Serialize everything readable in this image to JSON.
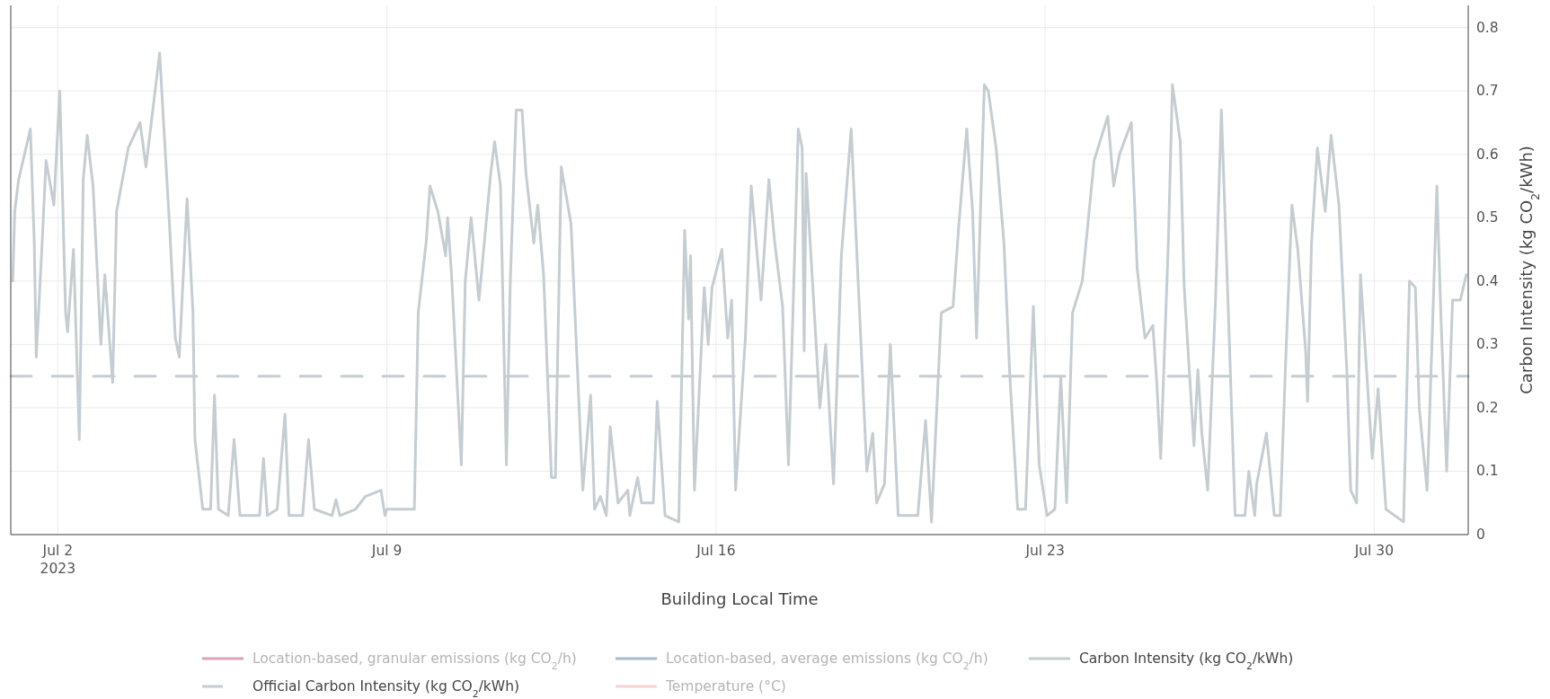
{
  "chart_data": {
    "type": "line",
    "xlabel": "Building Local Time",
    "ylabel": "Carbon Intensity (kg CO$_{2}$/kWh)",
    "xlim": [
      "2023-07-01",
      "2023-08-01"
    ],
    "ylim": [
      0,
      0.835
    ],
    "yticks": [
      0,
      0.1,
      0.2,
      0.3,
      0.4,
      0.5,
      0.6,
      0.7,
      0.8
    ],
    "xticks": [
      {
        "value": "2023-07-02",
        "label": "Jul 2\n2023"
      },
      {
        "value": "2023-07-09",
        "label": "Jul 9"
      },
      {
        "value": "2023-07-16",
        "label": "Jul 16"
      },
      {
        "value": "2023-07-23",
        "label": "Jul 23"
      },
      {
        "value": "2023-07-30",
        "label": "Jul 30"
      }
    ],
    "grid": true,
    "legend": "bottom",
    "line_style": "solid",
    "marker": "none",
    "series": [
      {
        "name": "Location-based, granular emissions (kg CO$_{2}$/h)",
        "color": "#d9a3b8"
      },
      {
        "name": "Location-based, average emissions (kg CO$_{2}$/h)",
        "color": "#a9b8cc"
      },
      {
        "name": "Carbon Intensity (kg CO$_{2}$/kWh)",
        "color": "#c5cdd0",
        "x": [
          "2023-07-01T01:00",
          "2023-07-01T02:00",
          "2023-07-01T04:00",
          "2023-07-01T10:00",
          "2023-07-01T12:00",
          "2023-07-01T13:00",
          "2023-07-01T16:00",
          "2023-07-01T18:00",
          "2023-07-01T22:00",
          "2023-07-02T01:00",
          "2023-07-02T04:00",
          "2023-07-02T05:00",
          "2023-07-02T08:00",
          "2023-07-02T11:00",
          "2023-07-02T13:00",
          "2023-07-02T15:00",
          "2023-07-02T18:00",
          "2023-07-02T22:00",
          "2023-07-03T00:00",
          "2023-07-03T04:00",
          "2023-07-03T06:00",
          "2023-07-03T12:00",
          "2023-07-03T18:00",
          "2023-07-03T21:00",
          "2023-07-04T04:00",
          "2023-07-04T06:00",
          "2023-07-04T09:00",
          "2023-07-04T12:00",
          "2023-07-04T14:00",
          "2023-07-04T18:00",
          "2023-07-04T21:00",
          "2023-07-04T22:00",
          "2023-07-05T02:00",
          "2023-07-05T06:00",
          "2023-07-05T08:00",
          "2023-07-05T10:00",
          "2023-07-05T15:00",
          "2023-07-05T18:00",
          "2023-07-05T21:00",
          "2023-07-06T07:00",
          "2023-07-06T09:00",
          "2023-07-06T11:00",
          "2023-07-06T16:00",
          "2023-07-06T20:00",
          "2023-07-06T22:00",
          "2023-07-07T05:00",
          "2023-07-07T08:00",
          "2023-07-07T11:00",
          "2023-07-07T20:00",
          "2023-07-07T22:00",
          "2023-07-08T00:00",
          "2023-07-08T08:00",
          "2023-07-08T13:00",
          "2023-07-08T21:00",
          "2023-07-08T23:00",
          "2023-07-09T00:00",
          "2023-07-09T14:00",
          "2023-07-09T16:00",
          "2023-07-09T20:00",
          "2023-07-09T22:00",
          "2023-07-10T02:00",
          "2023-07-10T06:00",
          "2023-07-10T07:00",
          "2023-07-10T09:00",
          "2023-07-10T14:00",
          "2023-07-10T16:00",
          "2023-07-10T19:00",
          "2023-07-10T23:00",
          "2023-07-11T05:00",
          "2023-07-11T07:00",
          "2023-07-11T10:00",
          "2023-07-11T13:00",
          "2023-07-11T15:00",
          "2023-07-11T18:00",
          "2023-07-11T21:00",
          "2023-07-11T23:00",
          "2023-07-12T03:00",
          "2023-07-12T05:00",
          "2023-07-12T08:00",
          "2023-07-12T12:00",
          "2023-07-12T14:00",
          "2023-07-12T17:00",
          "2023-07-12T22:00",
          "2023-07-13T02:00",
          "2023-07-13T04:00",
          "2023-07-13T08:00",
          "2023-07-13T10:00",
          "2023-07-13T13:00",
          "2023-07-13T16:00",
          "2023-07-13T18:00",
          "2023-07-13T22:00",
          "2023-07-14T03:00",
          "2023-07-14T04:00",
          "2023-07-14T08:00",
          "2023-07-14T10:00",
          "2023-07-14T16:00",
          "2023-07-14T18:00",
          "2023-07-14T22:00",
          "2023-07-15T05:00",
          "2023-07-15T08:00",
          "2023-07-15T10:00",
          "2023-07-15T11:00",
          "2023-07-15T13:00",
          "2023-07-15T18:00",
          "2023-07-15T20:00",
          "2023-07-15T22:00",
          "2023-07-16T03:00",
          "2023-07-16T06:00",
          "2023-07-16T08:00",
          "2023-07-16T10:00",
          "2023-07-16T15:00",
          "2023-07-16T18:00",
          "2023-07-16T23:00",
          "2023-07-17T03:00",
          "2023-07-17T06:00",
          "2023-07-17T10:00",
          "2023-07-17T13:00",
          "2023-07-17T18:00",
          "2023-07-17T20:00",
          "2023-07-17T21:00",
          "2023-07-17T22:00",
          "2023-07-18T02:00",
          "2023-07-18T05:00",
          "2023-07-18T08:00",
          "2023-07-18T12:00",
          "2023-07-18T16:00",
          "2023-07-18T21:00",
          "2023-07-19T01:00",
          "2023-07-19T05:00",
          "2023-07-19T08:00",
          "2023-07-19T10:00",
          "2023-07-19T14:00",
          "2023-07-19T17:00",
          "2023-07-19T21:00",
          "2023-07-20T07:00",
          "2023-07-20T11:00",
          "2023-07-20T14:00",
          "2023-07-20T19:00",
          "2023-07-21T01:00",
          "2023-07-21T04:00",
          "2023-07-21T08:00",
          "2023-07-21T11:00",
          "2023-07-21T13:00",
          "2023-07-21T17:00",
          "2023-07-21T19:00",
          "2023-07-21T23:00",
          "2023-07-22T03:00",
          "2023-07-22T06:00",
          "2023-07-22T10:00",
          "2023-07-22T14:00",
          "2023-07-22T18:00",
          "2023-07-22T21:00",
          "2023-07-23T01:00",
          "2023-07-23T05:00",
          "2023-07-23T08:00",
          "2023-07-23T11:00",
          "2023-07-23T14:00",
          "2023-07-23T19:00",
          "2023-07-24T01:00",
          "2023-07-24T08:00",
          "2023-07-24T11:00",
          "2023-07-24T14:00",
          "2023-07-24T20:00",
          "2023-07-24T23:00",
          "2023-07-25T03:00",
          "2023-07-25T07:00",
          "2023-07-25T09:00",
          "2023-07-25T11:00",
          "2023-07-25T15:00",
          "2023-07-25T17:00",
          "2023-07-25T21:00",
          "2023-07-25T23:00",
          "2023-07-26T04:00",
          "2023-07-26T06:00",
          "2023-07-26T08:00",
          "2023-07-26T11:00",
          "2023-07-26T15:00",
          "2023-07-26T18:00",
          "2023-07-26T22:00",
          "2023-07-27T01:00",
          "2023-07-27T06:00",
          "2023-07-27T08:00",
          "2023-07-27T11:00",
          "2023-07-27T12:00",
          "2023-07-27T17:00",
          "2023-07-27T21:00",
          "2023-07-28T00:00",
          "2023-07-28T03:00",
          "2023-07-28T06:00",
          "2023-07-28T09:00",
          "2023-07-28T13:00",
          "2023-07-28T14:00",
          "2023-07-28T16:00",
          "2023-07-28T19:00",
          "2023-07-28T23:00",
          "2023-07-29T02:00",
          "2023-07-29T06:00",
          "2023-07-29T10:00",
          "2023-07-29T12:00",
          "2023-07-29T15:00",
          "2023-07-29T17:00",
          "2023-07-29T23:00",
          "2023-07-30T02:00",
          "2023-07-30T06:00",
          "2023-07-30T15:00",
          "2023-07-30T18:00",
          "2023-07-30T21:00",
          "2023-07-30T23:00",
          "2023-07-31T03:00",
          "2023-07-31T06:00",
          "2023-07-31T08:00",
          "2023-07-31T10:00",
          "2023-07-31T13:00",
          "2023-07-31T16:00",
          "2023-07-31T20:00",
          "2023-07-31T23:00"
        ],
        "values": [
          0.4,
          0.51,
          0.56,
          0.64,
          0.46,
          0.28,
          0.46,
          0.59,
          0.52,
          0.7,
          0.35,
          0.32,
          0.45,
          0.15,
          0.56,
          0.63,
          0.55,
          0.3,
          0.41,
          0.24,
          0.51,
          0.61,
          0.65,
          0.58,
          0.76,
          0.65,
          0.49,
          0.31,
          0.28,
          0.53,
          0.35,
          0.15,
          0.04,
          0.04,
          0.22,
          0.04,
          0.03,
          0.15,
          0.03,
          0.03,
          0.12,
          0.03,
          0.04,
          0.19,
          0.03,
          0.03,
          0.15,
          0.04,
          0.03,
          0.055,
          0.03,
          0.04,
          0.06,
          0.07,
          0.03,
          0.04,
          0.04,
          0.35,
          0.46,
          0.55,
          0.51,
          0.44,
          0.5,
          0.41,
          0.11,
          0.4,
          0.5,
          0.37,
          0.57,
          0.62,
          0.55,
          0.11,
          0.4,
          0.67,
          0.67,
          0.57,
          0.46,
          0.52,
          0.41,
          0.09,
          0.09,
          0.58,
          0.49,
          0.21,
          0.07,
          0.22,
          0.04,
          0.06,
          0.03,
          0.17,
          0.05,
          0.07,
          0.03,
          0.09,
          0.05,
          0.05,
          0.21,
          0.03,
          0.02,
          0.48,
          0.34,
          0.44,
          0.07,
          0.39,
          0.3,
          0.39,
          0.45,
          0.31,
          0.37,
          0.07,
          0.31,
          0.55,
          0.37,
          0.56,
          0.46,
          0.36,
          0.11,
          0.64,
          0.61,
          0.29,
          0.57,
          0.36,
          0.2,
          0.3,
          0.08,
          0.44,
          0.64,
          0.37,
          0.1,
          0.16,
          0.05,
          0.08,
          0.3,
          0.03,
          0.03,
          0.18,
          0.02,
          0.35,
          0.36,
          0.49,
          0.64,
          0.51,
          0.31,
          0.71,
          0.7,
          0.61,
          0.46,
          0.25,
          0.04,
          0.04,
          0.36,
          0.11,
          0.03,
          0.04,
          0.25,
          0.05,
          0.35,
          0.4,
          0.59,
          0.66,
          0.55,
          0.6,
          0.65,
          0.42,
          0.31,
          0.33,
          0.24,
          0.12,
          0.47,
          0.71,
          0.62,
          0.39,
          0.14,
          0.26,
          0.16,
          0.07,
          0.37,
          0.67,
          0.31,
          0.03,
          0.03,
          0.1,
          0.03,
          0.08,
          0.16,
          0.03,
          0.03,
          0.29,
          0.52,
          0.45,
          0.29,
          0.21,
          0.46,
          0.61,
          0.51,
          0.63,
          0.52,
          0.26,
          0.07,
          0.05,
          0.41,
          0.12,
          0.23,
          0.04,
          0.02,
          0.4,
          0.39,
          0.2,
          0.07,
          0.35,
          0.55,
          0.35,
          0.1,
          0.37,
          0.37,
          0.41
        ]
      },
      {
        "name": "Official Carbon Intensity (kg CO$_{2}$/kWh)",
        "color": "#c5cdd0",
        "line_style": "dashed",
        "x": [
          "2023-07-01",
          "2023-08-01"
        ],
        "values": [
          0.25,
          0.25
        ]
      },
      {
        "name": "Temperature (°C)",
        "color": "#f7cfd7"
      }
    ]
  }
}
